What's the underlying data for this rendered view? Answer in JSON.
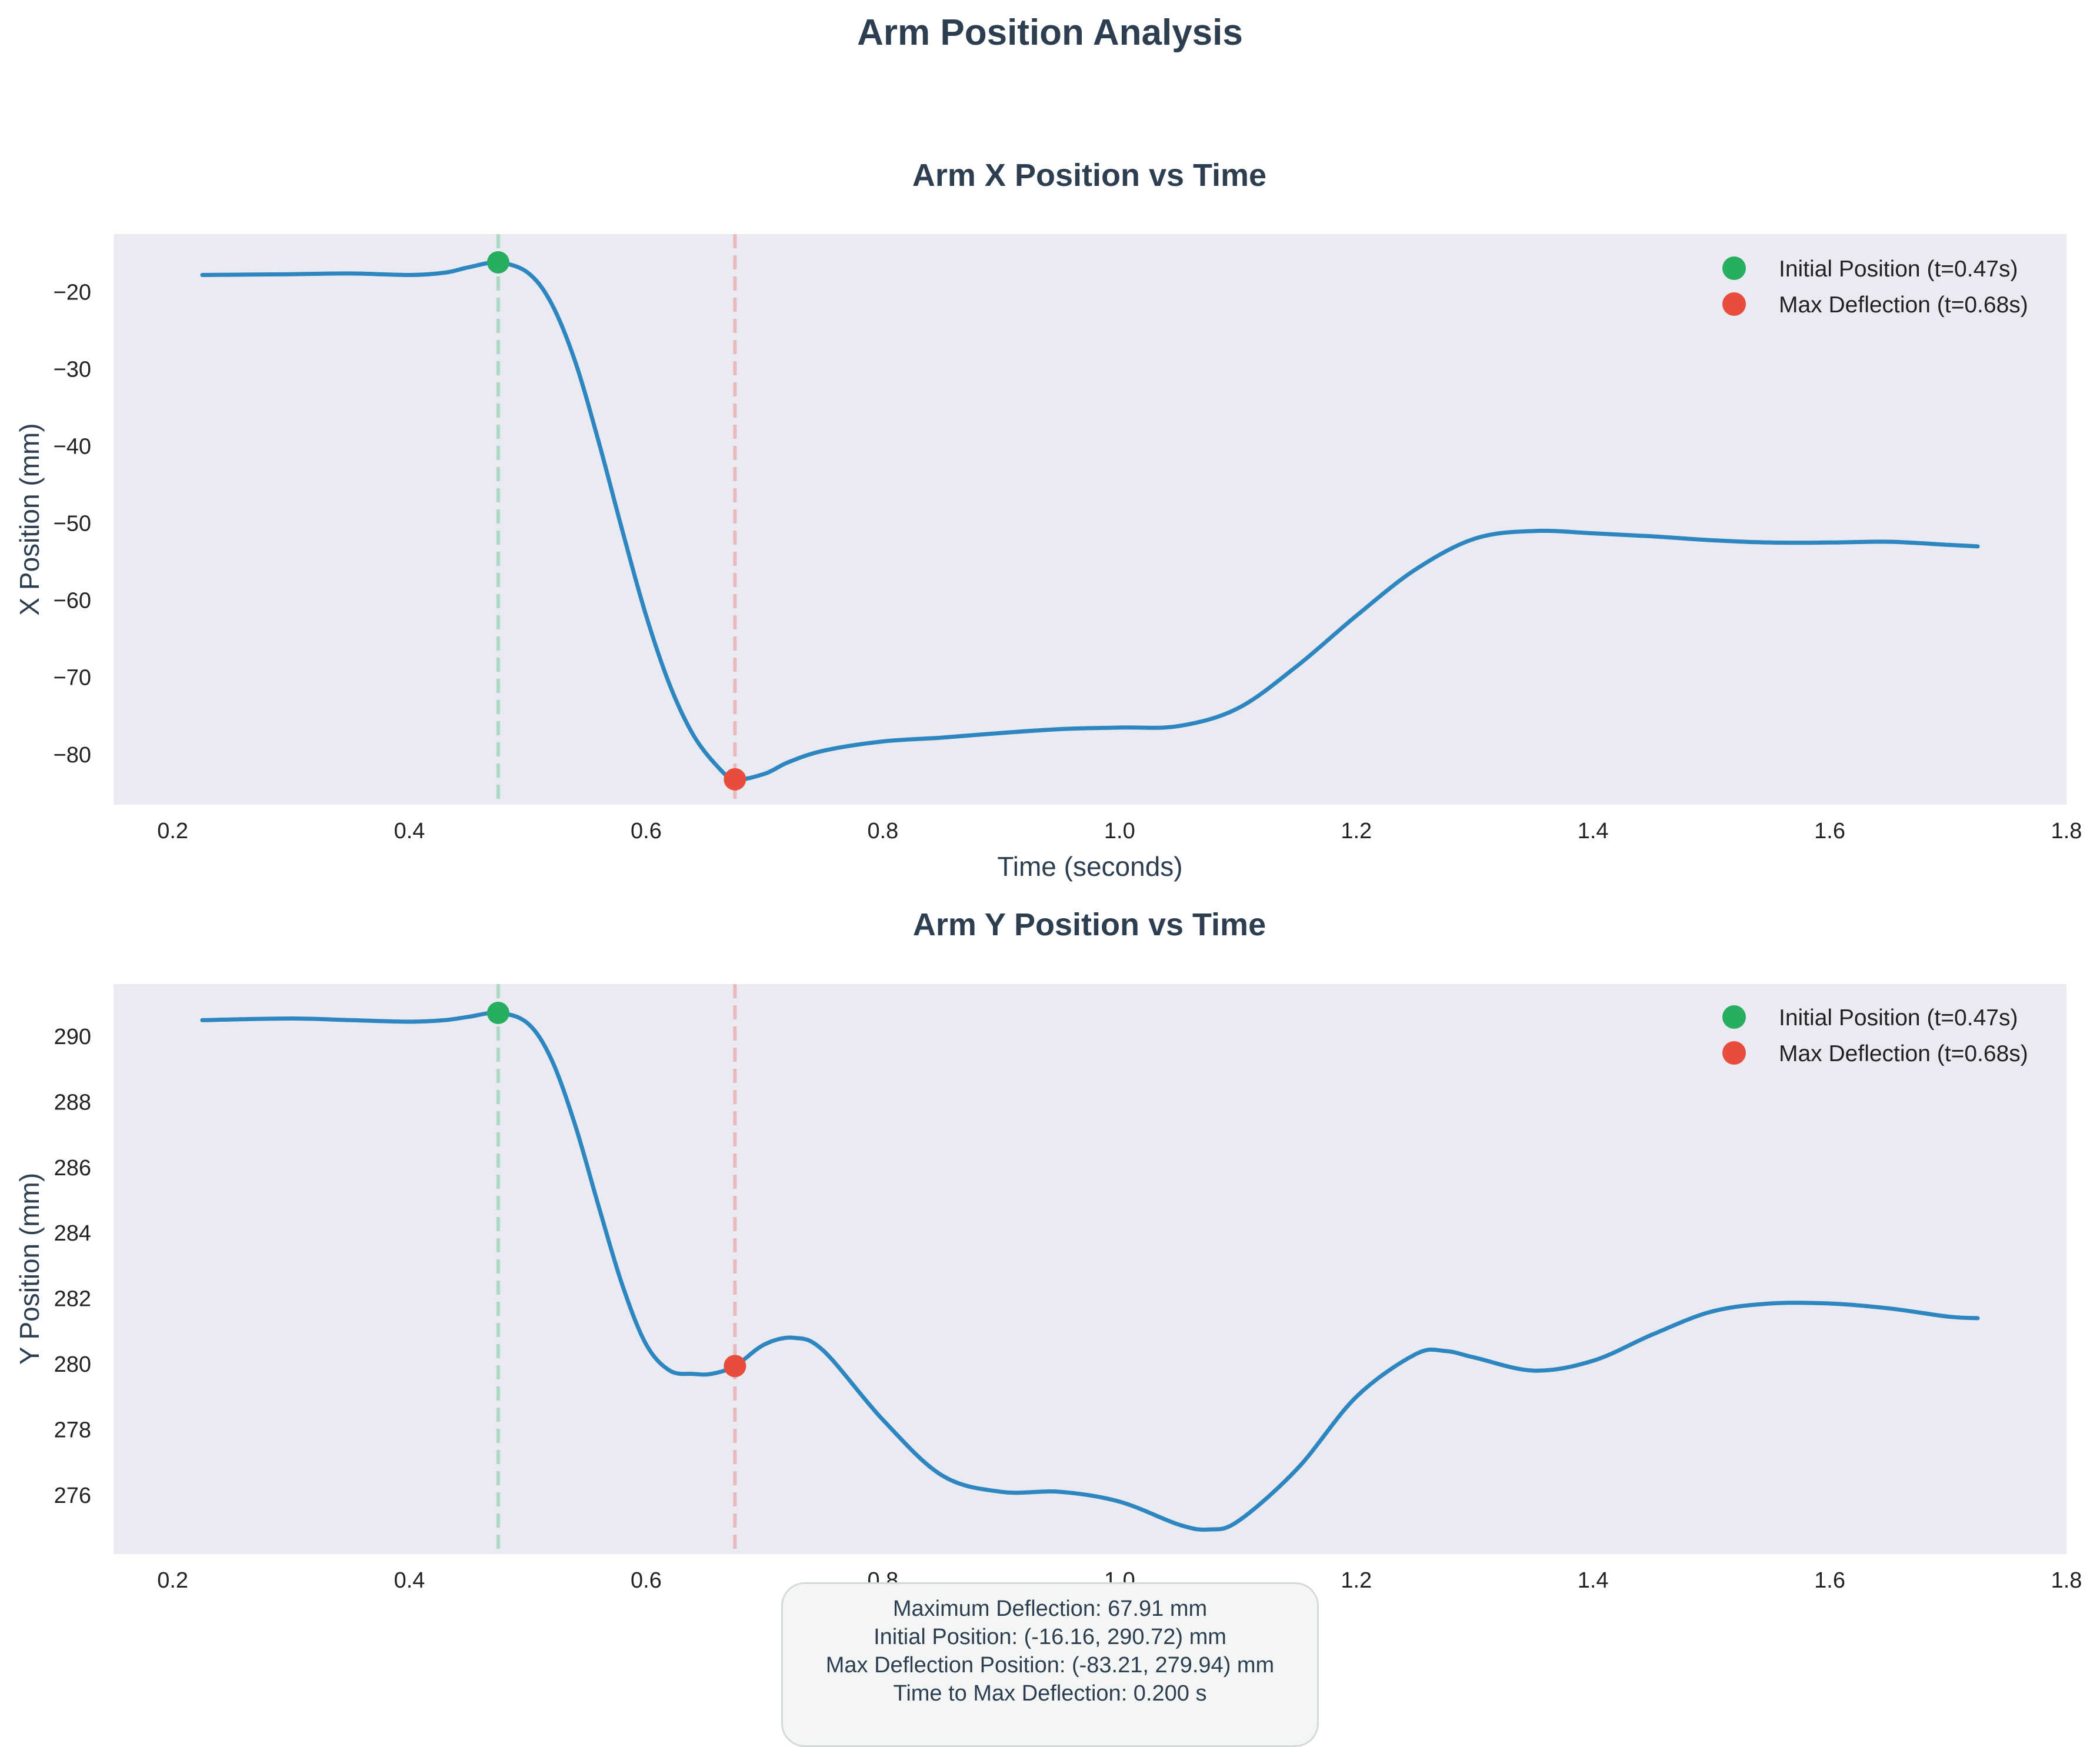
{
  "figure": {
    "suptitle": "Arm Position Analysis"
  },
  "colors": {
    "line": "#2e86c1",
    "initial": "#27ae60",
    "max": "#e74c3c",
    "axes_bg": "#eaeaf2",
    "title_text": "#2c3e50"
  },
  "chart_data": [
    {
      "type": "line",
      "title": "Arm X Position vs Time",
      "xlabel": "Time (seconds)",
      "ylabel": "X Position (mm)",
      "xlim": [
        0.15,
        1.8
      ],
      "ylim": [
        -86.5,
        -12.5
      ],
      "xticks": [
        0.2,
        0.4,
        0.6,
        0.8,
        1.0,
        1.2,
        1.4,
        1.6,
        1.8
      ],
      "xtick_labels": [
        "0.2",
        "0.4",
        "0.6",
        "0.8",
        "1.0",
        "1.2",
        "1.4",
        "1.6",
        "1.8"
      ],
      "yticks": [
        -20,
        -30,
        -40,
        -50,
        -60,
        -70,
        -80
      ],
      "ytick_labels": [
        "−20",
        "−30",
        "−40",
        "−50",
        "−60",
        "−70",
        "−80"
      ],
      "grid": false,
      "legend_position": "top-right",
      "series": [
        {
          "x": [
            0.225,
            0.3,
            0.35,
            0.4,
            0.43,
            0.45,
            0.475,
            0.5,
            0.52,
            0.54,
            0.56,
            0.58,
            0.6,
            0.62,
            0.64,
            0.66,
            0.675,
            0.7,
            0.72,
            0.75,
            0.8,
            0.85,
            0.9,
            0.95,
            1.0,
            1.05,
            1.1,
            1.15,
            1.2,
            1.25,
            1.3,
            1.35,
            1.4,
            1.45,
            1.5,
            1.55,
            1.6,
            1.65,
            1.7,
            1.725
          ],
          "y": [
            -17.8,
            -17.7,
            -17.6,
            -17.8,
            -17.5,
            -16.8,
            -16.2,
            -17.5,
            -21.5,
            -29.0,
            -39.5,
            -51.0,
            -62.0,
            -71.0,
            -77.5,
            -81.5,
            -83.2,
            -82.5,
            -81.0,
            -79.5,
            -78.3,
            -77.8,
            -77.2,
            -76.7,
            -76.5,
            -76.3,
            -74.0,
            -68.5,
            -62.0,
            -56.0,
            -52.0,
            -51.0,
            -51.3,
            -51.7,
            -52.2,
            -52.5,
            -52.5,
            -52.4,
            -52.8,
            -53.0
          ]
        }
      ],
      "annotations": [
        {
          "label": "Initial Position (t=0.47s)",
          "x": 0.475,
          "y": -16.16,
          "color": "#27ae60"
        },
        {
          "label": "Max Deflection (t=0.68s)",
          "x": 0.675,
          "y": -83.21,
          "color": "#e74c3c"
        }
      ]
    },
    {
      "type": "line",
      "title": "Arm Y Position vs Time",
      "xlabel": "",
      "ylabel": "Y Position (mm)",
      "xlim": [
        0.15,
        1.8
      ],
      "ylim": [
        274.2,
        291.6
      ],
      "xticks": [
        0.2,
        0.4,
        0.6,
        0.8,
        1.0,
        1.2,
        1.4,
        1.6,
        1.8
      ],
      "xtick_labels": [
        "0.2",
        "0.4",
        "0.6",
        "0.8",
        "1.0",
        "1.2",
        "1.4",
        "1.6",
        "1.8"
      ],
      "yticks": [
        290,
        288,
        286,
        284,
        282,
        280,
        278,
        276
      ],
      "ytick_labels": [
        "290",
        "288",
        "286",
        "284",
        "282",
        "280",
        "278",
        "276"
      ],
      "grid": false,
      "legend_position": "top-right",
      "series": [
        {
          "x": [
            0.225,
            0.3,
            0.35,
            0.4,
            0.43,
            0.45,
            0.475,
            0.5,
            0.52,
            0.54,
            0.56,
            0.58,
            0.6,
            0.62,
            0.64,
            0.655,
            0.675,
            0.7,
            0.725,
            0.75,
            0.8,
            0.85,
            0.9,
            0.95,
            1.0,
            1.05,
            1.075,
            1.1,
            1.15,
            1.2,
            1.25,
            1.275,
            1.3,
            1.35,
            1.4,
            1.45,
            1.5,
            1.55,
            1.6,
            1.65,
            1.7,
            1.725
          ],
          "y": [
            290.5,
            290.55,
            290.5,
            290.45,
            290.5,
            290.6,
            290.72,
            290.4,
            289.3,
            287.3,
            284.8,
            282.4,
            280.6,
            279.8,
            279.7,
            279.7,
            279.94,
            280.6,
            280.8,
            280.4,
            278.3,
            276.6,
            276.1,
            276.1,
            275.8,
            275.1,
            274.95,
            275.2,
            276.8,
            279.0,
            280.3,
            280.4,
            280.2,
            279.8,
            280.1,
            280.9,
            281.6,
            281.85,
            281.85,
            281.7,
            281.45,
            281.4
          ]
        }
      ],
      "annotations": [
        {
          "label": "Initial Position (t=0.47s)",
          "x": 0.475,
          "y": 290.72,
          "color": "#27ae60"
        },
        {
          "label": "Max Deflection (t=0.68s)",
          "x": 0.675,
          "y": 279.94,
          "color": "#e74c3c"
        }
      ]
    }
  ],
  "stats_box": {
    "lines": [
      "Maximum Deflection: 67.91 mm",
      "Initial Position: (-16.16, 290.72) mm",
      "Max Deflection Position: (-83.21, 279.94) mm",
      "Time to Max Deflection: 0.200 s"
    ]
  }
}
